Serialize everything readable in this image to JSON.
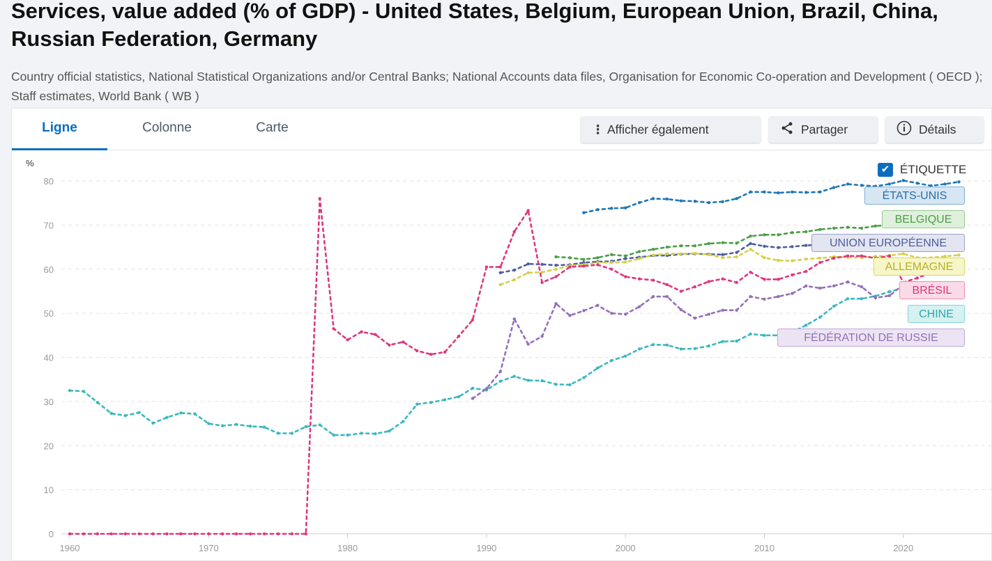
{
  "header": {
    "title": "Services, value added (% of GDP) - United States, Belgium, European Union, Brazil, China, Russian Federation, Germany",
    "subtitle": "Country official statistics, National Statistical Organizations and/or Central Banks; National Accounts data files, Organisation for Economic Co-operation and Development ( OECD ); Staff estimates, World Bank ( WB )"
  },
  "tabs": [
    {
      "label": "Ligne"
    },
    {
      "label": "Colonne"
    },
    {
      "label": "Carte"
    }
  ],
  "buttons": {
    "also_show": "Afficher également",
    "share": "Partager",
    "details": "Détails"
  },
  "legend_toggle": {
    "label": "ÉTIQUETTE",
    "checked": true
  },
  "chart_data": {
    "type": "line",
    "title": "Services, value added (% of GDP)",
    "ylabel": "%",
    "xlabel": "",
    "ylim": [
      0,
      80
    ],
    "xlim": [
      1960,
      2025
    ],
    "yticks": [
      0,
      10,
      20,
      30,
      40,
      50,
      60,
      70,
      80
    ],
    "xticks": [
      1960,
      1970,
      1980,
      1990,
      2000,
      2010,
      2020
    ],
    "grid": true,
    "series": [
      {
        "name": "ÉTATS-UNIS",
        "color": "#1f77b4",
        "start": 1997,
        "values": [
          72.8,
          73.5,
          73.8,
          73.9,
          75.1,
          76.0,
          75.9,
          75.5,
          75.4,
          75.1,
          75.3,
          76.0,
          77.5,
          77.5,
          77.3,
          77.5,
          77.4,
          77.5,
          78.5,
          79.3,
          79.0,
          78.8,
          79.3,
          80.1,
          79.5,
          78.9,
          79.3,
          79.8
        ]
      },
      {
        "name": "BELGIQUE",
        "color": "#4c9e47",
        "start": 1995,
        "values": [
          62.8,
          62.6,
          62.2,
          62.6,
          63.3,
          63.0,
          64.0,
          64.5,
          65.0,
          65.3,
          65.3,
          65.8,
          66.0,
          65.9,
          67.5,
          67.8,
          67.8,
          68.3,
          68.5,
          69.0,
          69.3,
          69.5,
          69.3,
          69.8,
          70.0,
          70.5,
          70.3,
          71.0,
          71.2,
          72.1
        ]
      },
      {
        "name": "UNION EUROPÉENNE",
        "color": "#4e5fa0",
        "start": 1991,
        "values": [
          59.2,
          59.8,
          61.2,
          61.1,
          60.9,
          61.0,
          61.5,
          61.7,
          61.8,
          62.4,
          62.7,
          63.1,
          63.1,
          63.4,
          63.5,
          63.4,
          63.3,
          63.8,
          65.8,
          65.2,
          64.9,
          65.1,
          65.4,
          65.5,
          65.3,
          65.3,
          65.3,
          65.4,
          65.5,
          65.9,
          65.3,
          65.3,
          65.5,
          66.2
        ]
      },
      {
        "name": "ALLEMAGNE",
        "color": "#d4d04e",
        "start": 1991,
        "values": [
          56.5,
          57.6,
          59.2,
          59.3,
          60.0,
          60.8,
          61.0,
          61.5,
          61.5,
          61.6,
          62.4,
          63.2,
          63.5,
          63.5,
          63.6,
          63.3,
          62.6,
          62.8,
          64.5,
          62.6,
          62.0,
          61.9,
          62.3,
          62.5,
          62.8,
          62.7,
          62.6,
          62.9,
          63.1,
          63.5,
          62.6,
          62.6,
          62.9,
          63.2
        ]
      },
      {
        "name": "BRÉSIL",
        "color": "#e0367d",
        "start": 1960,
        "values": [
          0,
          0,
          0,
          0,
          0,
          0,
          0,
          0,
          0,
          0,
          0,
          0,
          0,
          0,
          0,
          0,
          0,
          0,
          76.0,
          46.5,
          44.0,
          45.8,
          45.2,
          42.8,
          43.5,
          41.5,
          40.7,
          41.2,
          44.8,
          48.5,
          60.5,
          60.5,
          68.5,
          73.3,
          57.0,
          58.3,
          60.5,
          60.7,
          61.0,
          60.0,
          58.3,
          57.8,
          57.5,
          56.5,
          55.0,
          56.0,
          57.2,
          57.8,
          57.0,
          59.3,
          57.7,
          57.7,
          58.7,
          59.5,
          61.5,
          62.5,
          63.0,
          63.0,
          62.5,
          63.0,
          57.0,
          58.0,
          59.2,
          59.5
        ]
      },
      {
        "name": "CHINE",
        "color": "#3ab8bf",
        "start": 1960,
        "values": [
          32.5,
          32.3,
          29.8,
          27.3,
          26.8,
          27.5,
          25.1,
          26.4,
          27.4,
          27.2,
          25.0,
          24.5,
          24.8,
          24.4,
          24.2,
          22.8,
          22.8,
          24.3,
          24.7,
          22.4,
          22.4,
          22.8,
          22.7,
          23.3,
          25.5,
          29.4,
          29.8,
          30.4,
          31.1,
          33.0,
          32.6,
          34.6,
          35.7,
          34.8,
          34.7,
          33.9,
          33.8,
          35.4,
          37.6,
          39.3,
          40.3,
          41.9,
          42.9,
          42.8,
          41.9,
          42.0,
          42.6,
          43.6,
          43.7,
          45.3,
          45.0,
          45.0,
          45.7,
          47.3,
          49.1,
          51.6,
          53.3,
          53.3,
          53.9,
          54.9,
          55.7,
          54.9,
          55.9,
          56.7
        ]
      },
      {
        "name": "FÉDÉRATION DE RUSSIE",
        "color": "#9470b8",
        "start": 1989,
        "values": [
          30.7,
          32.9,
          36.8,
          48.7,
          43.0,
          44.8,
          52.2,
          49.5,
          50.6,
          51.8,
          50.0,
          49.8,
          51.5,
          53.8,
          53.8,
          50.8,
          48.9,
          49.8,
          50.7,
          50.7,
          53.8,
          53.2,
          53.8,
          54.5,
          56.2,
          55.7,
          56.2,
          57.1,
          56.0,
          53.5,
          54.0,
          56.5,
          54.5,
          55.5,
          56.0
        ]
      }
    ]
  }
}
